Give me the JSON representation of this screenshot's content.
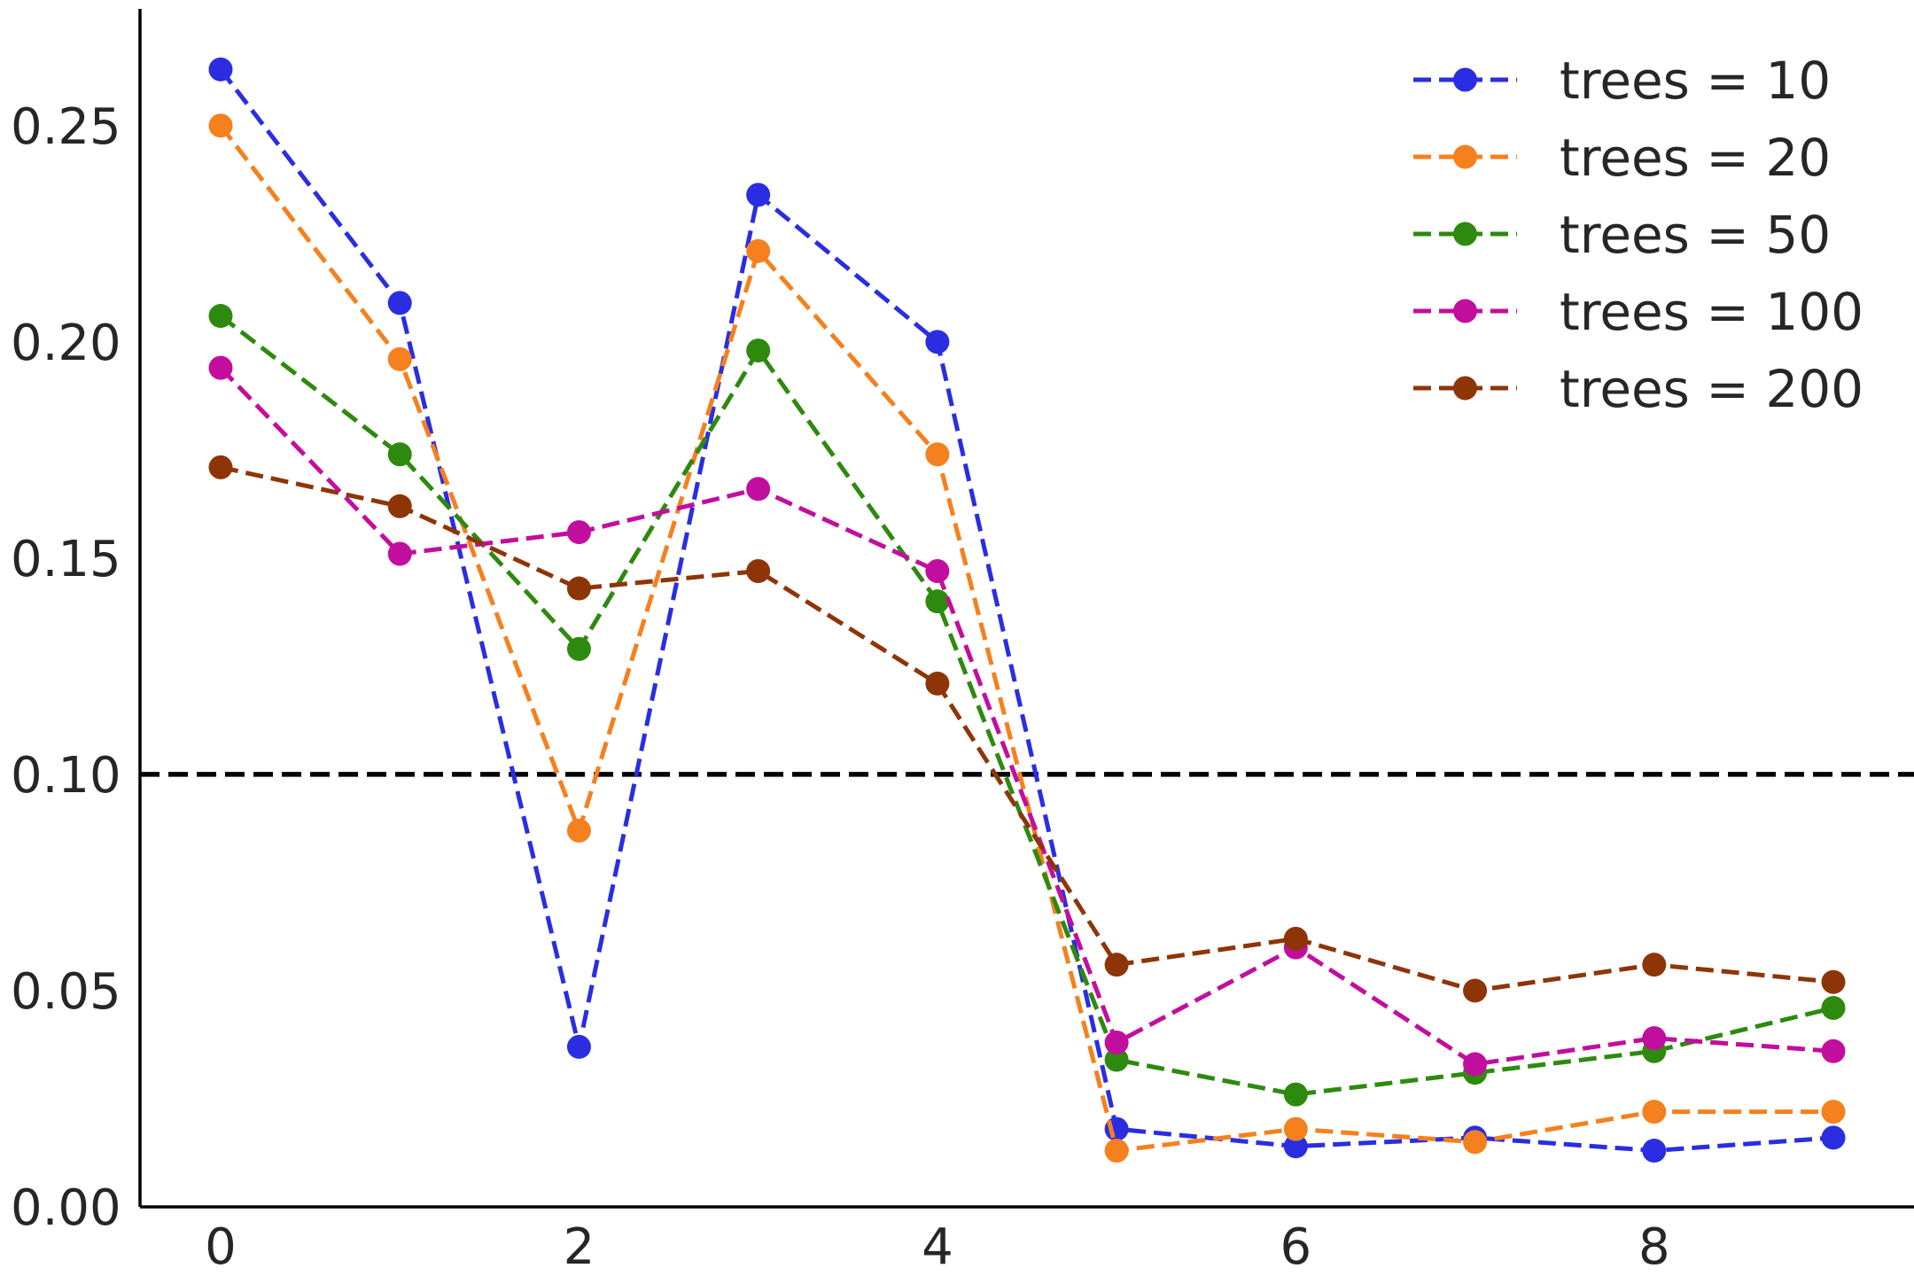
{
  "chart_data": {
    "type": "line",
    "title": "",
    "xlabel": "",
    "ylabel": "",
    "x": [
      0,
      1,
      2,
      3,
      4,
      5,
      6,
      7,
      8,
      9
    ],
    "xlim": [
      -0.45,
      9.45
    ],
    "ylim": [
      0.0,
      0.277
    ],
    "xticks": [
      0,
      2,
      4,
      6,
      8
    ],
    "xtick_labels": [
      "0",
      "2",
      "4",
      "6",
      "8"
    ],
    "yticks": [
      0.0,
      0.05,
      0.1,
      0.15,
      0.2,
      0.25
    ],
    "ytick_labels": [
      "0.00",
      "0.05",
      "0.10",
      "0.15",
      "0.20",
      "0.25"
    ],
    "grid": false,
    "legend_position": "top-right",
    "reference_line": {
      "y": 0.1,
      "style": "dashed",
      "color": "#000000"
    },
    "series": [
      {
        "name": "trees = 10",
        "color": "#2a2ee0",
        "values": [
          0.263,
          0.209,
          0.037,
          0.234,
          0.2,
          0.018,
          0.014,
          0.016,
          0.013,
          0.016
        ]
      },
      {
        "name": "trees = 20",
        "color": "#f5801e",
        "values": [
          0.25,
          0.196,
          0.087,
          0.221,
          0.174,
          0.013,
          0.018,
          0.015,
          0.022,
          0.022
        ]
      },
      {
        "name": "trees = 50",
        "color": "#2e8a0e",
        "values": [
          0.206,
          0.174,
          0.129,
          0.198,
          0.14,
          0.034,
          0.026,
          0.031,
          0.036,
          0.046
        ]
      },
      {
        "name": "trees = 100",
        "color": "#c20e9e",
        "values": [
          0.194,
          0.151,
          0.156,
          0.166,
          0.147,
          0.038,
          0.06,
          0.033,
          0.039,
          0.036
        ]
      },
      {
        "name": "trees = 200",
        "color": "#8e3508",
        "values": [
          0.171,
          0.162,
          0.143,
          0.147,
          0.121,
          0.056,
          0.062,
          0.05,
          0.056,
          0.052
        ]
      }
    ]
  }
}
